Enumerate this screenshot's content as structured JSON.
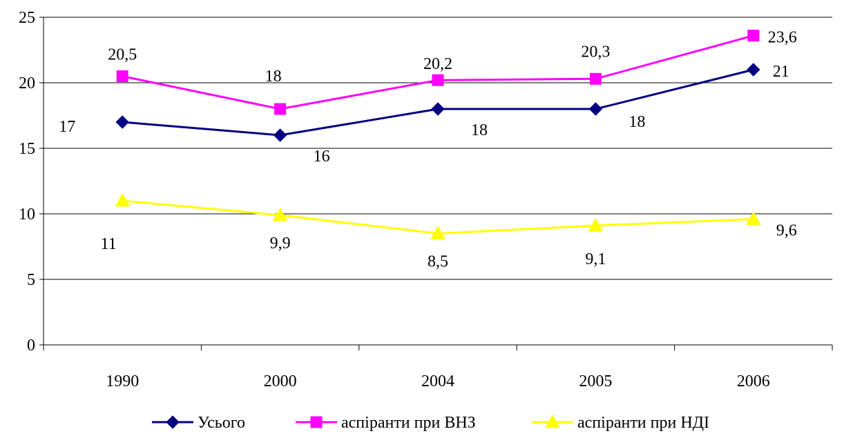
{
  "chart_data": {
    "type": "line",
    "title": "",
    "xlabel": "",
    "ylabel": "",
    "categories": [
      "1990",
      "2000",
      "2004",
      "2005",
      "2006"
    ],
    "ylim": [
      0,
      25
    ],
    "yticks": [
      0,
      5,
      10,
      15,
      20,
      25
    ],
    "grid": "horizontal major gridlines",
    "legend_position": "bottom",
    "series": [
      {
        "name": "Усього",
        "values": [
          17,
          16,
          18,
          18,
          21
        ],
        "value_labels": [
          "17",
          "16",
          "18",
          "18",
          "21"
        ],
        "color": "#000080",
        "marker": "diamond"
      },
      {
        "name": "аспіранти при ВНЗ",
        "values": [
          20.5,
          18,
          20.2,
          20.3,
          23.6
        ],
        "value_labels": [
          "20,5",
          "18",
          "20,2",
          "20,3",
          "23,6"
        ],
        "color": "#FF00FF",
        "marker": "square"
      },
      {
        "name": "аспіранти при НДІ",
        "values": [
          11,
          9.9,
          8.5,
          9.1,
          9.6
        ],
        "value_labels": [
          "11",
          "9,9",
          "8,5",
          "9,1",
          "9,6"
        ],
        "color": "#FFFF00",
        "marker": "triangle"
      }
    ]
  }
}
